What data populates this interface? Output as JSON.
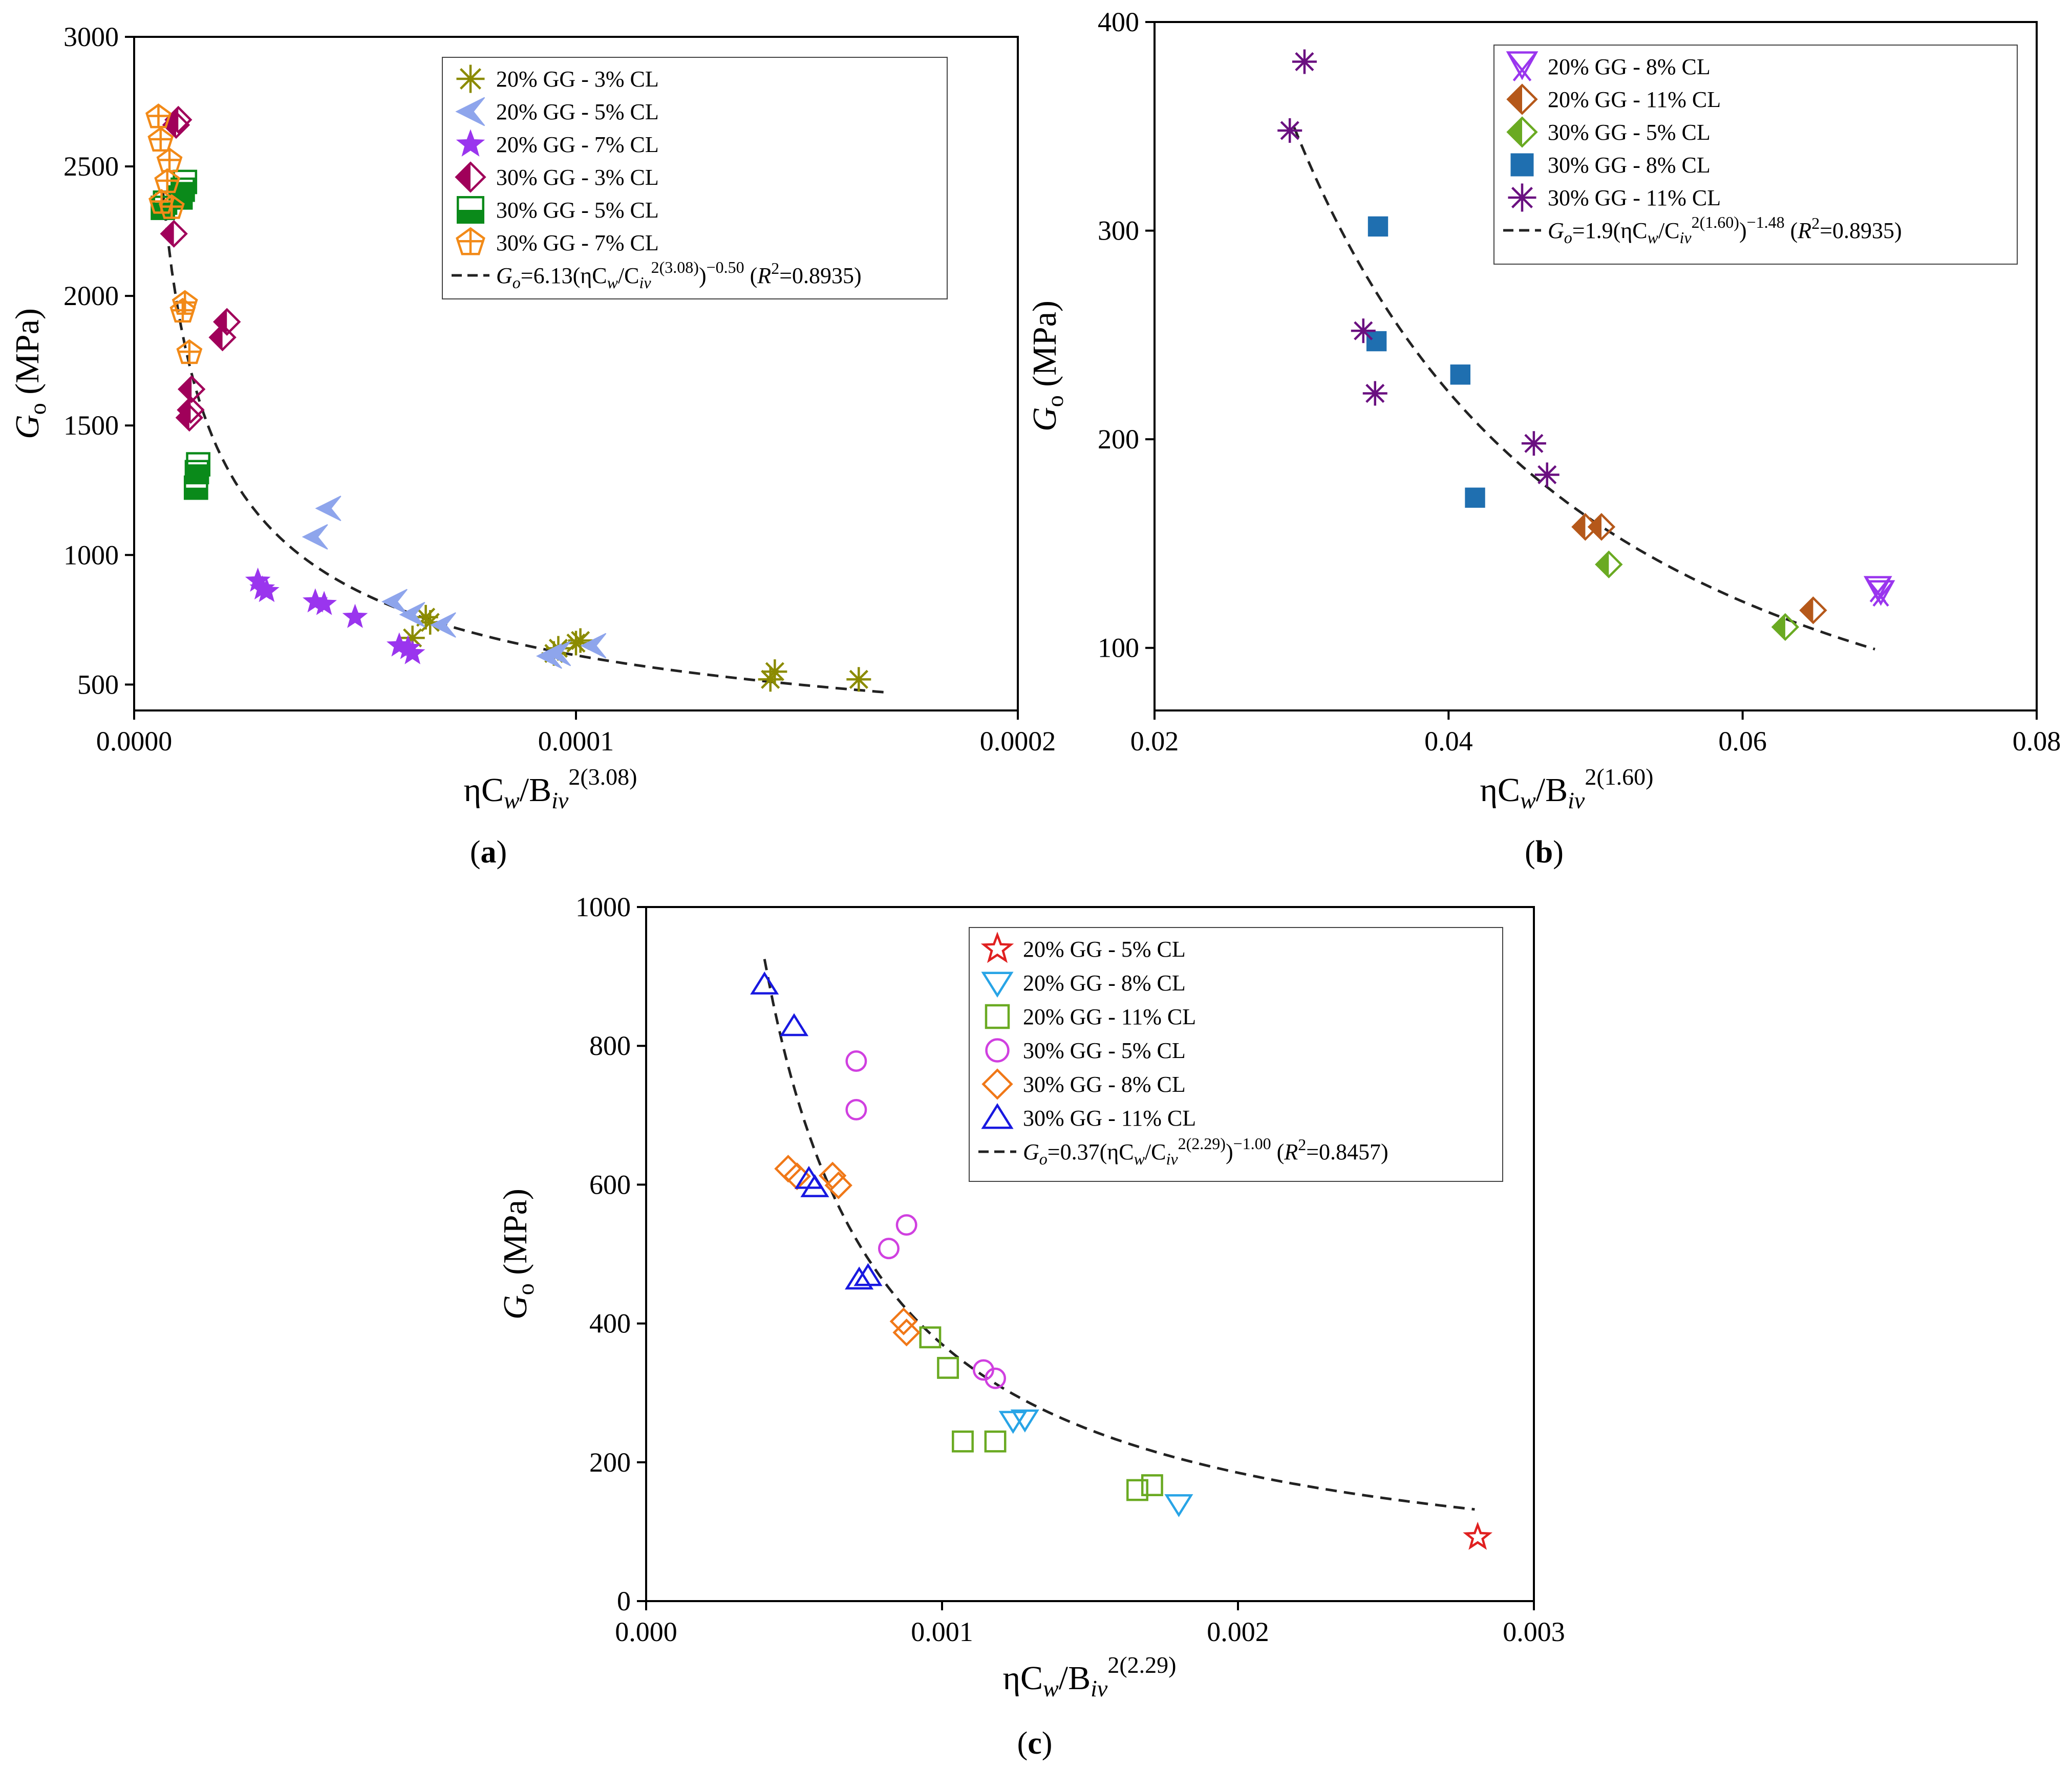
{
  "chart_data": [
    {
      "id": "a",
      "type": "scatter",
      "panel_label": "a",
      "xlabel": {
        "main": "ηC",
        "sub1": "w",
        "mid": "/B",
        "sub2": "iv",
        "sup": "2(3.08)"
      },
      "ylabel": {
        "main": "G",
        "sub": "o",
        "unit": " (MPa)"
      },
      "xlim": [
        0,
        0.0002
      ],
      "ylim": [
        400,
        3000
      ],
      "xticks": [
        0,
        0.0001,
        0.0002
      ],
      "xtick_labels": [
        "0.0000",
        "0.0001",
        "0.0002"
      ],
      "yticks": [
        500,
        1000,
        1500,
        2000,
        2500,
        3000
      ],
      "ytick_labels": [
        "500",
        "1000",
        "1500",
        "2000",
        "2500",
        "3000"
      ],
      "fit": {
        "label_parts": [
          "G",
          "o",
          "=6.13(ηC",
          "w",
          "/C",
          "iv",
          "2(3.08)",
          ")",
          "−0.50",
          " (",
          "R",
          "2",
          "=0.8935)"
        ],
        "coef": 6.13,
        "exp": -0.5,
        "x_range": [
          6.5e-06,
          0.00017
        ],
        "r2": 0.8935
      },
      "series": [
        {
          "name": "20% GG - 3% CL",
          "marker": "asterisk",
          "color": "#8b8b00",
          "points": [
            [
              6.3e-05,
              680
            ],
            [
              6.6e-05,
              760
            ],
            [
              6.7e-05,
              740
            ],
            [
              9.5e-05,
              620
            ],
            [
              9.6e-05,
              640
            ],
            [
              0.0001,
              660
            ],
            [
              0.000101,
              670
            ],
            [
              0.000144,
              520
            ],
            [
              0.000145,
              550
            ],
            [
              0.000164,
              520
            ]
          ]
        },
        {
          "name": "20% GG - 5% CL",
          "marker": "tri-left",
          "color": "#8ea5ec",
          "points": [
            [
              4.1e-05,
              1070
            ],
            [
              4.4e-05,
              1180
            ],
            [
              5.9e-05,
              820
            ],
            [
              6.3e-05,
              770
            ],
            [
              7e-05,
              730
            ],
            [
              9.4e-05,
              610
            ],
            [
              9.6e-05,
              620
            ],
            [
              0.000104,
              650
            ]
          ]
        },
        {
          "name": "20% GG - 7% CL",
          "marker": "star",
          "color": "#9a35ee",
          "points": [
            [
              2.8e-05,
              900
            ],
            [
              2.9e-05,
              870
            ],
            [
              3e-05,
              860
            ],
            [
              4.1e-05,
              820
            ],
            [
              4.3e-05,
              810
            ],
            [
              5e-05,
              760
            ],
            [
              6e-05,
              650
            ],
            [
              6.2e-05,
              640
            ],
            [
              6.3e-05,
              620
            ]
          ]
        },
        {
          "name": "30% GG - 3% CL",
          "marker": "diamond-half",
          "color": "#a0005a",
          "points": [
            [
              9e-06,
              2240
            ],
            [
              9.5e-06,
              2660
            ],
            [
              1e-05,
              2680
            ],
            [
              1.25e-05,
              1530
            ],
            [
              1.28e-05,
              1560
            ],
            [
              1.3e-05,
              1640
            ],
            [
              2e-05,
              1840
            ],
            [
              2.1e-05,
              1900
            ]
          ]
        },
        {
          "name": "30% GG - 5% CL",
          "marker": "square-half",
          "color": "#0a8a1a",
          "points": [
            [
              6.5e-06,
              2340
            ],
            [
              7e-06,
              2360
            ],
            [
              1.05e-05,
              2380
            ],
            [
              1.1e-05,
              2410
            ],
            [
              1.15e-05,
              2440
            ],
            [
              1.4e-05,
              1260
            ],
            [
              1.42e-05,
              1320
            ],
            [
              1.45e-05,
              1350
            ]
          ]
        },
        {
          "name": "30% GG - 7% CL",
          "marker": "pentagon-cross",
          "color": "#f28a18",
          "points": [
            [
              5.5e-06,
              2690
            ],
            [
              6e-06,
              2600
            ],
            [
              6.2e-06,
              2360
            ],
            [
              7.5e-06,
              2440
            ],
            [
              8e-06,
              2520
            ],
            [
              8.5e-06,
              2340
            ],
            [
              1.1e-05,
              1940
            ],
            [
              1.15e-05,
              1970
            ],
            [
              1.25e-05,
              1780
            ]
          ]
        }
      ]
    },
    {
      "id": "b",
      "type": "scatter",
      "panel_label": "b",
      "xlabel": {
        "main": "ηC",
        "sub1": "w",
        "mid": "/B",
        "sub2": "iv",
        "sup": "2(1.60)"
      },
      "ylabel": {
        "main": "G",
        "sub": "o",
        "unit": " (MPa)"
      },
      "xlim": [
        0.02,
        0.08
      ],
      "ylim": [
        70,
        400
      ],
      "xticks": [
        0.02,
        0.04,
        0.06,
        0.08
      ],
      "xtick_labels": [
        "0.02",
        "0.04",
        "0.06",
        "0.08"
      ],
      "yticks": [
        100,
        200,
        300,
        400
      ],
      "ytick_labels": [
        "100",
        "200",
        "300",
        "400"
      ],
      "fit": {
        "label_parts": [
          "G",
          "o",
          "=1.9(ηC",
          "w",
          "/C",
          "iv",
          "2(1.60)",
          ")",
          "−1.48",
          " (",
          "R",
          "2",
          "=0.8935)"
        ],
        "coef": 1.9,
        "exp": -1.48,
        "x_range": [
          0.0295,
          0.069
        ],
        "r2": 0.8935
      },
      "series": [
        {
          "name": "20% GG - 8% CL",
          "marker": "triangle-cross",
          "color": "#9a35ee",
          "points": [
            [
              0.0692,
              128
            ],
            [
              0.0694,
              126
            ]
          ]
        },
        {
          "name": "20% GG - 11% CL",
          "marker": "diamond-half",
          "color": "#b5581a",
          "points": [
            [
              0.0493,
              158
            ],
            [
              0.0504,
              158
            ],
            [
              0.0648,
              118
            ]
          ]
        },
        {
          "name": "30% GG - 5% CL",
          "marker": "diamond-half",
          "color": "#6aaa22",
          "points": [
            [
              0.0509,
              140
            ],
            [
              0.0629,
              110
            ]
          ]
        },
        {
          "name": "30% GG - 8% CL",
          "marker": "square",
          "color": "#1f6fb0",
          "points": [
            [
              0.0352,
              302
            ],
            [
              0.0351,
              247
            ],
            [
              0.0408,
              231
            ],
            [
              0.0418,
              172
            ]
          ]
        },
        {
          "name": "30% GG - 11% CL",
          "marker": "asterisk",
          "color": "#6a1080",
          "points": [
            [
              0.0292,
              348
            ],
            [
              0.0302,
              381
            ],
            [
              0.0342,
              252
            ],
            [
              0.035,
              222
            ],
            [
              0.0458,
              198
            ],
            [
              0.0467,
              183
            ]
          ]
        }
      ]
    },
    {
      "id": "c",
      "type": "scatter",
      "panel_label": "c",
      "xlabel": {
        "main": "ηC",
        "sub1": "w",
        "mid": "/B",
        "sub2": "iv",
        "sup": "2(2.29)"
      },
      "ylabel": {
        "main": "G",
        "sub": "o",
        "unit": " (MPa)"
      },
      "xlim": [
        0,
        0.003
      ],
      "ylim": [
        0,
        1000
      ],
      "xticks": [
        0,
        0.001,
        0.002,
        0.003
      ],
      "xtick_labels": [
        "0.000",
        "0.001",
        "0.002",
        "0.003"
      ],
      "yticks": [
        0,
        200,
        400,
        600,
        800,
        1000
      ],
      "ytick_labels": [
        "0",
        "200",
        "400",
        "600",
        "800",
        "1000"
      ],
      "fit": {
        "label_parts": [
          "G",
          "o",
          "=0.37(ηC",
          "w",
          "/C",
          "iv",
          "2(2.29)",
          ")",
          "−1.00",
          " (",
          "R",
          "2",
          "=0.8457)"
        ],
        "coef": 0.37,
        "exp": -1.0,
        "x_range": [
          0.0004,
          0.0028
        ],
        "r2": 0.8457
      },
      "series": [
        {
          "name": "20% GG - 5% CL",
          "marker": "star-open",
          "color": "#e02020",
          "points": [
            [
              0.00281,
              92
            ]
          ]
        },
        {
          "name": "20% GG - 8% CL",
          "marker": "triangle-down-open",
          "color": "#28a4e6",
          "points": [
            [
              0.00124,
              260
            ],
            [
              0.00128,
              262
            ],
            [
              0.0018,
              140
            ]
          ]
        },
        {
          "name": "20% GG - 11% CL",
          "marker": "square-open",
          "color": "#6aaa22",
          "points": [
            [
              0.00096,
              380
            ],
            [
              0.00102,
              336
            ],
            [
              0.00107,
              230
            ],
            [
              0.00118,
              230
            ],
            [
              0.00166,
              160
            ],
            [
              0.00171,
              167
            ]
          ]
        },
        {
          "name": "30% GG - 5% CL",
          "marker": "circle-open",
          "color": "#d040e0",
          "points": [
            [
              0.00071,
              778
            ],
            [
              0.00071,
              708
            ],
            [
              0.00082,
              508
            ],
            [
              0.00088,
              542
            ],
            [
              0.00114,
              333
            ],
            [
              0.00118,
              321
            ]
          ]
        },
        {
          "name": "30% GG - 8% CL",
          "marker": "diamond-open",
          "color": "#f07818",
          "points": [
            [
              0.00048,
              623
            ],
            [
              0.00051,
              612
            ],
            [
              0.00063,
              613
            ],
            [
              0.00065,
              599
            ],
            [
              0.00087,
              403
            ],
            [
              0.00088,
              387
            ]
          ]
        },
        {
          "name": "30% GG - 11% CL",
          "marker": "triangle-up-open",
          "color": "#1818e0",
          "points": [
            [
              0.0004,
              888
            ],
            [
              0.0005,
              828
            ],
            [
              0.00055,
              608
            ],
            [
              0.00057,
              596
            ],
            [
              0.00072,
              463
            ],
            [
              0.00075,
              468
            ]
          ]
        }
      ]
    }
  ]
}
